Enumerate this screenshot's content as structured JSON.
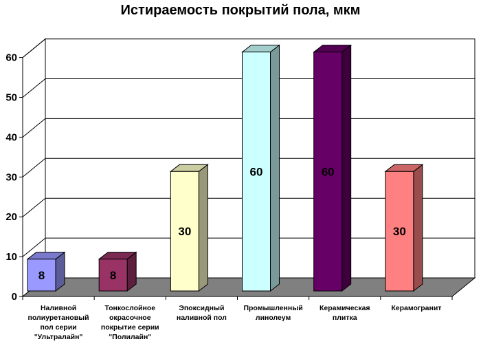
{
  "chart_data": {
    "type": "bar",
    "title": "Истираемость покрытий пола, мкм",
    "xlabel": "",
    "ylabel": "",
    "ylim": [
      0,
      60
    ],
    "yticks": [
      0,
      10,
      20,
      30,
      40,
      50,
      60
    ],
    "grid": true,
    "legend": "none",
    "categories": [
      [
        "Наливной",
        "полиуретановый",
        "пол серии",
        "\"Ультралайн\""
      ],
      [
        "Тонкослойное",
        "окрасочное",
        "покрытие серии",
        "\"Полилайн\""
      ],
      [
        "Эпоксидный",
        "наливной пол"
      ],
      [
        "Промышленный",
        "линолеум"
      ],
      [
        "Керамическая",
        "плитка"
      ],
      [
        "Керамогранит"
      ]
    ],
    "values": [
      8,
      8,
      30,
      60,
      60,
      30
    ],
    "colors": [
      "#9999ff",
      "#993366",
      "#ffffcc",
      "#ccffff",
      "#660066",
      "#ff8080"
    ]
  }
}
